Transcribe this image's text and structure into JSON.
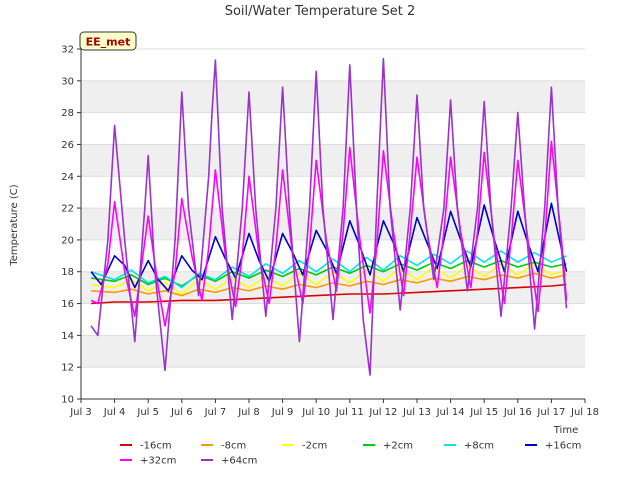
{
  "chart_data": {
    "type": "line",
    "title": "Soil/Water Temperature Set 2",
    "xlabel": "Time",
    "ylabel": "Temperature (C)",
    "site_label": "EE_met",
    "xlim": [
      3,
      18
    ],
    "ylim": [
      10,
      32
    ],
    "x_ticks": [
      {
        "value": 3,
        "label": "Jul 3"
      },
      {
        "value": 4,
        "label": "Jul 4"
      },
      {
        "value": 5,
        "label": "Jul 5"
      },
      {
        "value": 6,
        "label": "Jul 6"
      },
      {
        "value": 7,
        "label": "Jul 7"
      },
      {
        "value": 8,
        "label": "Jul 8"
      },
      {
        "value": 9,
        "label": "Jul 9"
      },
      {
        "value": 10,
        "label": "Jul 10"
      },
      {
        "value": 11,
        "label": "Jul 11"
      },
      {
        "value": 12,
        "label": "Jul 12"
      },
      {
        "value": 13,
        "label": "Jul 13"
      },
      {
        "value": 14,
        "label": "Jul 14"
      },
      {
        "value": 15,
        "label": "Jul 15"
      },
      {
        "value": 16,
        "label": "Jul 16"
      },
      {
        "value": 17,
        "label": "Jul 17"
      },
      {
        "value": 18,
        "label": "Jul 18"
      }
    ],
    "y_ticks": [
      10,
      12,
      14,
      16,
      18,
      20,
      22,
      24,
      26,
      28,
      30,
      32
    ],
    "grid": "horizontal bands",
    "legend_position": "bottom",
    "series": [
      {
        "name": "-16cm",
        "color": "#dd0000",
        "x": [
          3.3,
          4.0,
          5.0,
          6.0,
          7.0,
          8.0,
          9.0,
          10.0,
          11.0,
          12.0,
          13.0,
          14.0,
          15.0,
          16.0,
          17.0,
          17.45
        ],
        "y": [
          16.0,
          16.1,
          16.1,
          16.2,
          16.2,
          16.3,
          16.4,
          16.5,
          16.6,
          16.6,
          16.7,
          16.8,
          16.9,
          17.0,
          17.1,
          17.2
        ]
      },
      {
        "name": "-8cm",
        "color": "#ff9900",
        "x": [
          3.3,
          4.0,
          4.5,
          5.0,
          5.5,
          6.0,
          6.5,
          7.0,
          7.5,
          8.0,
          8.5,
          9.0,
          9.5,
          10.0,
          10.5,
          11.0,
          11.5,
          12.0,
          12.5,
          13.0,
          13.5,
          14.0,
          14.5,
          15.0,
          15.5,
          16.0,
          16.5,
          17.0,
          17.45
        ],
        "y": [
          16.8,
          16.7,
          16.9,
          16.6,
          16.8,
          16.5,
          16.9,
          16.7,
          17.0,
          16.8,
          17.1,
          16.9,
          17.2,
          17.0,
          17.3,
          17.1,
          17.4,
          17.2,
          17.5,
          17.3,
          17.6,
          17.4,
          17.7,
          17.5,
          17.8,
          17.6,
          17.9,
          17.6,
          17.8
        ]
      },
      {
        "name": "-2cm",
        "color": "#ffff00",
        "x": [
          3.3,
          4.0,
          4.5,
          5.0,
          5.5,
          6.0,
          6.5,
          7.0,
          7.5,
          8.0,
          8.5,
          9.0,
          9.5,
          10.0,
          10.5,
          11.0,
          11.5,
          12.0,
          12.5,
          13.0,
          13.5,
          14.0,
          14.5,
          15.0,
          15.5,
          16.0,
          16.5,
          17.0,
          17.45
        ],
        "y": [
          17.2,
          17.0,
          17.5,
          16.8,
          17.3,
          16.6,
          17.5,
          16.9,
          17.6,
          17.0,
          17.7,
          17.1,
          17.9,
          17.2,
          18.0,
          17.3,
          18.1,
          17.4,
          18.2,
          17.5,
          18.3,
          17.6,
          18.4,
          17.7,
          18.5,
          17.8,
          18.5,
          17.8,
          18.1
        ]
      },
      {
        "name": "+2cm",
        "color": "#00cc00",
        "x": [
          3.3,
          4.0,
          4.5,
          5.0,
          5.5,
          6.0,
          6.5,
          7.0,
          7.5,
          8.0,
          8.5,
          9.0,
          9.5,
          10.0,
          10.5,
          11.0,
          11.5,
          12.0,
          12.5,
          13.0,
          13.5,
          14.0,
          14.5,
          15.0,
          15.5,
          16.0,
          16.5,
          17.0,
          17.45
        ],
        "y": [
          17.6,
          17.4,
          17.8,
          17.2,
          17.6,
          17.1,
          17.8,
          17.4,
          18.0,
          17.6,
          18.1,
          17.7,
          18.2,
          17.8,
          18.3,
          17.9,
          18.4,
          18.0,
          18.5,
          18.1,
          18.6,
          18.2,
          18.7,
          18.3,
          18.7,
          18.3,
          18.6,
          18.3,
          18.5
        ]
      },
      {
        "name": "+8cm",
        "color": "#00e5e5",
        "x": [
          3.3,
          4.0,
          4.5,
          5.0,
          5.5,
          6.0,
          6.5,
          7.0,
          7.5,
          8.0,
          8.5,
          9.0,
          9.5,
          10.0,
          10.5,
          11.0,
          11.5,
          12.0,
          12.5,
          13.0,
          13.5,
          14.0,
          14.5,
          15.0,
          15.5,
          16.0,
          16.5,
          17.0,
          17.45
        ],
        "y": [
          18.0,
          17.5,
          18.1,
          17.3,
          17.7,
          17.0,
          17.9,
          17.5,
          18.3,
          17.7,
          18.5,
          17.9,
          18.7,
          18.0,
          18.8,
          18.0,
          18.9,
          18.1,
          19.0,
          18.4,
          19.1,
          18.5,
          19.3,
          18.6,
          19.3,
          18.6,
          19.2,
          18.6,
          19.0
        ]
      },
      {
        "name": "+16cm",
        "color": "#0000cc",
        "x": [
          3.3,
          3.6,
          4.0,
          4.3,
          4.6,
          5.0,
          5.3,
          5.6,
          6.0,
          6.3,
          6.6,
          7.0,
          7.3,
          7.6,
          8.0,
          8.3,
          8.6,
          9.0,
          9.3,
          9.6,
          10.0,
          10.3,
          10.6,
          11.0,
          11.3,
          11.6,
          12.0,
          12.3,
          12.6,
          13.0,
          13.3,
          13.6,
          14.0,
          14.3,
          14.6,
          15.0,
          15.3,
          15.6,
          16.0,
          16.3,
          16.6,
          17.0,
          17.45
        ],
        "y": [
          18.0,
          17.2,
          19.0,
          18.4,
          17.0,
          18.7,
          17.5,
          16.8,
          19.0,
          18.1,
          17.5,
          20.2,
          18.8,
          17.6,
          20.4,
          18.7,
          17.4,
          20.4,
          19.2,
          17.8,
          20.6,
          19.4,
          17.9,
          21.2,
          19.6,
          17.8,
          21.2,
          19.8,
          18.0,
          21.4,
          19.8,
          18.2,
          21.8,
          20.0,
          18.3,
          22.2,
          20.0,
          18.0,
          21.8,
          19.8,
          18.0,
          22.3,
          18.0
        ]
      },
      {
        "name": "+32cm",
        "color": "#ff00ff",
        "x": [
          3.3,
          3.5,
          3.8,
          4.0,
          4.3,
          4.6,
          5.0,
          5.3,
          5.5,
          5.8,
          6.0,
          6.3,
          6.6,
          6.8,
          7.0,
          7.3,
          7.6,
          7.8,
          8.0,
          8.3,
          8.6,
          8.8,
          9.0,
          9.3,
          9.6,
          9.8,
          10.0,
          10.3,
          10.6,
          10.8,
          11.0,
          11.3,
          11.6,
          11.8,
          12.0,
          12.3,
          12.6,
          12.8,
          13.0,
          13.3,
          13.6,
          13.8,
          14.0,
          14.3,
          14.6,
          14.8,
          15.0,
          15.3,
          15.6,
          15.8,
          16.0,
          16.3,
          16.6,
          16.8,
          17.0,
          17.3,
          17.45
        ],
        "y": [
          16.2,
          16.0,
          18.5,
          22.4,
          18.0,
          15.2,
          21.5,
          17.0,
          14.6,
          18.0,
          22.6,
          19.0,
          16.2,
          19.5,
          24.4,
          19.0,
          15.8,
          19.0,
          24.0,
          19.0,
          16.0,
          19.5,
          24.4,
          19.0,
          16.0,
          19.5,
          25.0,
          20.0,
          16.8,
          20.5,
          25.8,
          20.0,
          15.4,
          19.5,
          25.6,
          20.5,
          16.5,
          20.5,
          25.2,
          20.5,
          17.0,
          20.5,
          25.2,
          20.5,
          17.0,
          20.5,
          25.5,
          20.0,
          16.0,
          20.0,
          25.0,
          20.0,
          15.5,
          20.0,
          26.2,
          20.0,
          16.2
        ]
      },
      {
        "name": "+64cm",
        "color": "#9933cc",
        "x": [
          3.3,
          3.5,
          3.8,
          4.0,
          4.3,
          4.6,
          4.9,
          5.0,
          5.2,
          5.5,
          5.8,
          6.0,
          6.2,
          6.5,
          6.8,
          6.9,
          7.0,
          7.2,
          7.5,
          7.8,
          8.0,
          8.2,
          8.5,
          8.8,
          9.0,
          9.2,
          9.5,
          9.8,
          10.0,
          10.2,
          10.5,
          10.8,
          11.0,
          11.2,
          11.4,
          11.6,
          11.8,
          12.0,
          12.2,
          12.5,
          12.8,
          13.0,
          13.2,
          13.5,
          13.8,
          14.0,
          14.2,
          14.5,
          14.8,
          15.0,
          15.2,
          15.5,
          15.8,
          16.0,
          16.2,
          16.5,
          16.8,
          17.0,
          17.2,
          17.45
        ],
        "y": [
          14.6,
          14.0,
          20.0,
          27.2,
          20.0,
          13.6,
          22.0,
          25.3,
          18.0,
          11.8,
          20.0,
          29.3,
          22.0,
          16.5,
          24.0,
          28.0,
          31.3,
          22.0,
          15.0,
          22.0,
          29.3,
          22.0,
          15.2,
          22.0,
          29.6,
          22.0,
          13.6,
          22.0,
          30.6,
          22.0,
          15.0,
          22.0,
          31.0,
          22.0,
          15.0,
          11.5,
          22.0,
          31.4,
          22.0,
          15.6,
          22.0,
          29.1,
          22.0,
          17.5,
          22.0,
          28.8,
          22.0,
          16.8,
          22.0,
          28.7,
          22.0,
          15.2,
          22.0,
          28.0,
          22.0,
          14.4,
          22.0,
          29.6,
          22.0,
          15.7
        ]
      }
    ]
  }
}
